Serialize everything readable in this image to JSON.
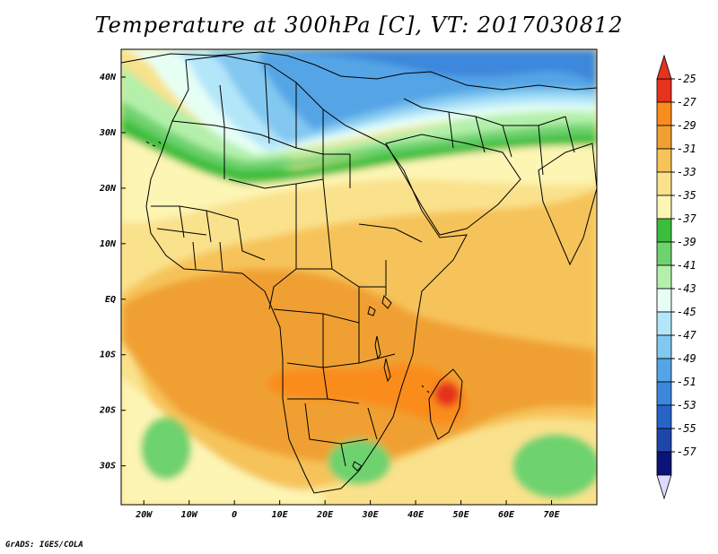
{
  "title": "Temperature at 300hPa [C], VT: 2017030812",
  "footer": "GrADS: IGES/COLA",
  "map": {
    "region": "Africa, Arabia and western Indian Ocean",
    "lon_range": [
      -25,
      80
    ],
    "lat_range": [
      -37,
      45
    ],
    "variable": "Temperature",
    "level": "300hPa",
    "units": "C",
    "valid_time": "2017030812"
  },
  "axes": {
    "x_ticks": [
      {
        "value": -20,
        "label": "20W"
      },
      {
        "value": -10,
        "label": "10W"
      },
      {
        "value": 0,
        "label": "0"
      },
      {
        "value": 10,
        "label": "10E"
      },
      {
        "value": 20,
        "label": "20E"
      },
      {
        "value": 30,
        "label": "30E"
      },
      {
        "value": 40,
        "label": "40E"
      },
      {
        "value": 50,
        "label": "50E"
      },
      {
        "value": 60,
        "label": "60E"
      },
      {
        "value": 70,
        "label": "70E"
      }
    ],
    "y_ticks": [
      {
        "value": 40,
        "label": "40N"
      },
      {
        "value": 30,
        "label": "30N"
      },
      {
        "value": 20,
        "label": "20N"
      },
      {
        "value": 10,
        "label": "10N"
      },
      {
        "value": 0,
        "label": "EQ"
      },
      {
        "value": -10,
        "label": "10S"
      },
      {
        "value": -20,
        "label": "20S"
      },
      {
        "value": -30,
        "label": "30S"
      }
    ]
  },
  "colorbar": {
    "levels": [
      {
        "label": "-25",
        "color": "#e6321e"
      },
      {
        "label": "-27",
        "color": "#fa8c1e"
      },
      {
        "label": "-29",
        "color": "#f0a032"
      },
      {
        "label": "-31",
        "color": "#f6c35a"
      },
      {
        "label": "-33",
        "color": "#fae18c"
      },
      {
        "label": "-35",
        "color": "#fdf5b4"
      },
      {
        "label": "-37",
        "color": "#3cbe3c"
      },
      {
        "label": "-39",
        "color": "#6ed26e"
      },
      {
        "label": "-41",
        "color": "#b4f0aa"
      },
      {
        "label": "-43",
        "color": "#e6fff5"
      },
      {
        "label": "-45",
        "color": "#b4e6fa"
      },
      {
        "label": "-47",
        "color": "#82c8f0"
      },
      {
        "label": "-49",
        "color": "#55a5e6"
      },
      {
        "label": "-51",
        "color": "#3c87dc"
      },
      {
        "label": "-53",
        "color": "#2864c8"
      },
      {
        "label": "-55",
        "color": "#1e46aa"
      },
      {
        "label": "-57",
        "color": "#0a1478"
      }
    ],
    "top_color": "#e6321e",
    "bottom_color": "#dcdcff"
  },
  "field": {
    "background": "#fae18c",
    "colors": {
      "cold_blue": "#2864c8",
      "blue": "#3c87dc",
      "mid_blue": "#55a5e6",
      "light_blue": "#82c8f0",
      "pale_blue": "#b4e6fa",
      "white_cyan": "#e6fff5",
      "pale_green": "#b4f0aa",
      "green": "#6ed26e",
      "dark_green": "#3cbe3c",
      "pale_yellow": "#fdf5b4",
      "yellow": "#fae18c",
      "light_orange": "#f6c35a",
      "orange": "#f0a032",
      "dark_orange": "#fa8c1e",
      "red": "#e6321e"
    }
  }
}
